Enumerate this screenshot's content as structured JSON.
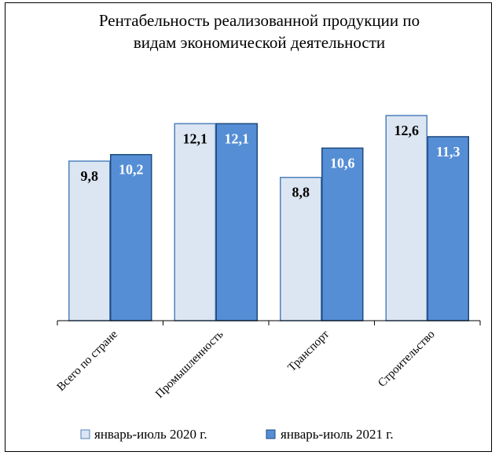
{
  "chart_data": {
    "type": "bar",
    "title_lines": [
      "Рентабельность реализованной продукции по",
      "видам экономической деятельности"
    ],
    "categories": [
      "Всего по стране",
      "Промышленность",
      "Транспорт",
      "Строительство"
    ],
    "series": [
      {
        "name": "январь-июль 2020 г.",
        "values": [
          9.8,
          12.1,
          8.8,
          12.6
        ],
        "labels": [
          "9,8",
          "12,1",
          "8,8",
          "12,6"
        ],
        "color": "#dce6f2",
        "stroke": "#4f81bd",
        "label_color": "#000000"
      },
      {
        "name": "январь-июль 2021 г.",
        "values": [
          10.2,
          12.1,
          10.6,
          11.3
        ],
        "labels": [
          "10,2",
          "12,1",
          "10,6",
          "11,3"
        ],
        "color": "#558ed5",
        "stroke": "#1f497d",
        "label_color": "#ffffff"
      }
    ],
    "ylim": [
      0,
      14
    ],
    "grid": false,
    "legend_position": "bottom"
  }
}
